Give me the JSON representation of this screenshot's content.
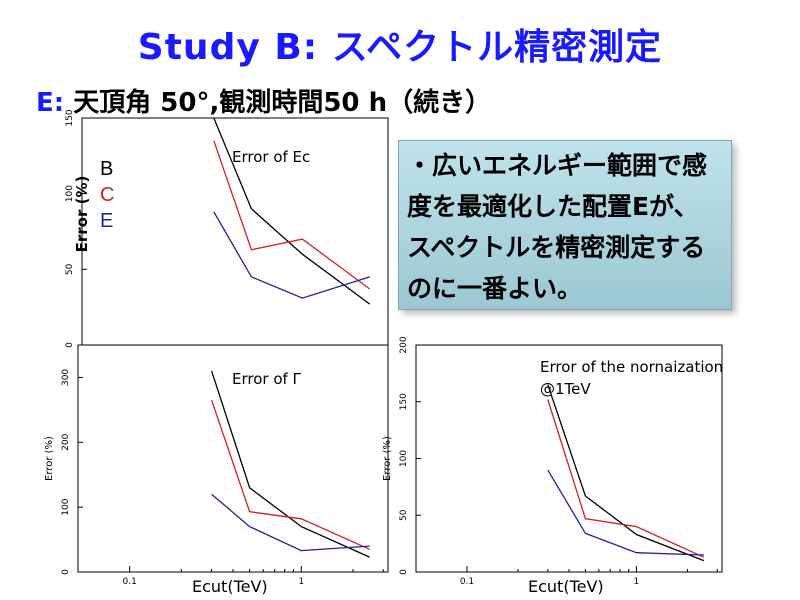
{
  "slide": {
    "title": "Study B: スペクトル精密測定",
    "subtitle_lead": "E:",
    "subtitle_rest": " 天頂角 50°,観測時間50 h（続き）",
    "legend": [
      {
        "label": "B",
        "color": "#000000"
      },
      {
        "label": "C",
        "color": "#d42020"
      },
      {
        "label": "E",
        "color": "#2020a0"
      }
    ],
    "ylabel_big": "Error (%)",
    "note": "・広いエネルギー範囲で感度を最適化した配置Eが、スペクトルを精密測定するのに一番よい。",
    "xlabel_left": "Ecut(TeV)",
    "xlabel_right": "Ecut(TeV)"
  },
  "chart_data": [
    {
      "type": "line",
      "title": "Error of Ec",
      "ylabel": "Error (%)",
      "ylim": [
        0,
        150
      ],
      "yticks": [
        "0",
        "50",
        "100",
        "150"
      ],
      "x": [
        0.3,
        0.5,
        1.0,
        2.5
      ],
      "series": [
        {
          "name": "B",
          "color": "#000000",
          "values": [
            150,
            90,
            60,
            27
          ]
        },
        {
          "name": "C",
          "color": "#d42020",
          "values": [
            135,
            63,
            70,
            37
          ]
        },
        {
          "name": "E",
          "color": "#2020a0",
          "values": [
            88,
            45,
            31,
            45
          ]
        }
      ]
    },
    {
      "type": "line",
      "title": "Error of Γ",
      "ylabel": "Error (%)",
      "ylim": [
        0,
        350
      ],
      "yticks": [
        "0",
        "100",
        "200",
        "300"
      ],
      "xlim": [
        0.05,
        3.2
      ],
      "xticks": [
        "0.1",
        "1"
      ],
      "x": [
        0.3,
        0.5,
        1.0,
        2.5
      ],
      "series": [
        {
          "name": "B",
          "color": "#000000",
          "values": [
            310,
            130,
            70,
            23
          ]
        },
        {
          "name": "C",
          "color": "#d42020",
          "values": [
            265,
            93,
            82,
            35
          ]
        },
        {
          "name": "E",
          "color": "#2020a0",
          "values": [
            120,
            70,
            33,
            40
          ]
        }
      ]
    },
    {
      "type": "line",
      "title": "Error of the nornaization @1TeV",
      "ylabel": "Error (%)",
      "ylim": [
        0,
        200
      ],
      "yticks": [
        "0",
        "50",
        "100",
        "150",
        "200"
      ],
      "xlim": [
        0.05,
        3.2
      ],
      "xticks": [
        "0.1",
        "1"
      ],
      "x": [
        0.3,
        0.5,
        1.0,
        2.5
      ],
      "series": [
        {
          "name": "B",
          "color": "#000000",
          "values": [
            165,
            67,
            33,
            10
          ]
        },
        {
          "name": "C",
          "color": "#d42020",
          "values": [
            152,
            47,
            40,
            13
          ]
        },
        {
          "name": "E",
          "color": "#2020a0",
          "values": [
            90,
            34,
            17,
            15
          ]
        }
      ]
    }
  ]
}
